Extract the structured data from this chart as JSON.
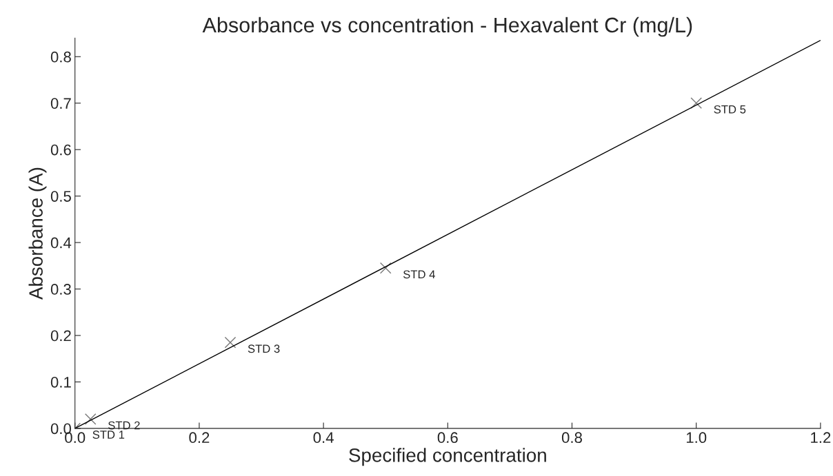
{
  "chart_data": {
    "type": "scatter",
    "title": "Absorbance vs concentration - Hexavalent Cr (mg/L)",
    "xlabel": "Specified concentration",
    "ylabel": "Absorbance (A)",
    "series": [
      {
        "x": [
          0.0,
          0.025,
          0.25,
          0.5,
          1.0
        ],
        "values": [
          0.0,
          0.02,
          0.185,
          0.345,
          0.7
        ],
        "color": "#777777",
        "marker": "cross"
      },
      {
        "type": "line",
        "x": [
          0.0,
          1.2
        ],
        "values": [
          0.0,
          0.835
        ],
        "color": "#000000",
        "marker": "none",
        "line_style": "solid"
      }
    ],
    "annotations": [
      {
        "text": "STD 1",
        "x": 0.0,
        "y": 0.0
      },
      {
        "text": "STD 2",
        "x": 0.025,
        "y": 0.02
      },
      {
        "text": "STD 3",
        "x": 0.25,
        "y": 0.185
      },
      {
        "text": "STD 4",
        "x": 0.5,
        "y": 0.345
      },
      {
        "text": "STD 5",
        "x": 1.0,
        "y": 0.7
      }
    ],
    "xlim": [
      0.0,
      1.2
    ],
    "ylim": [
      0.0,
      0.84
    ],
    "xticks": [
      {
        "value": 0,
        "label": "0.0"
      },
      0.2,
      0.4,
      0.6,
      0.8,
      {
        "value": 1,
        "label": "1.0"
      },
      1.2
    ],
    "yticks": [
      {
        "value": 0,
        "label": "0.0"
      },
      0.1,
      0.2,
      0.3,
      0.4,
      0.5,
      0.6,
      0.7,
      0.8
    ],
    "grid": false,
    "legend": false
  }
}
